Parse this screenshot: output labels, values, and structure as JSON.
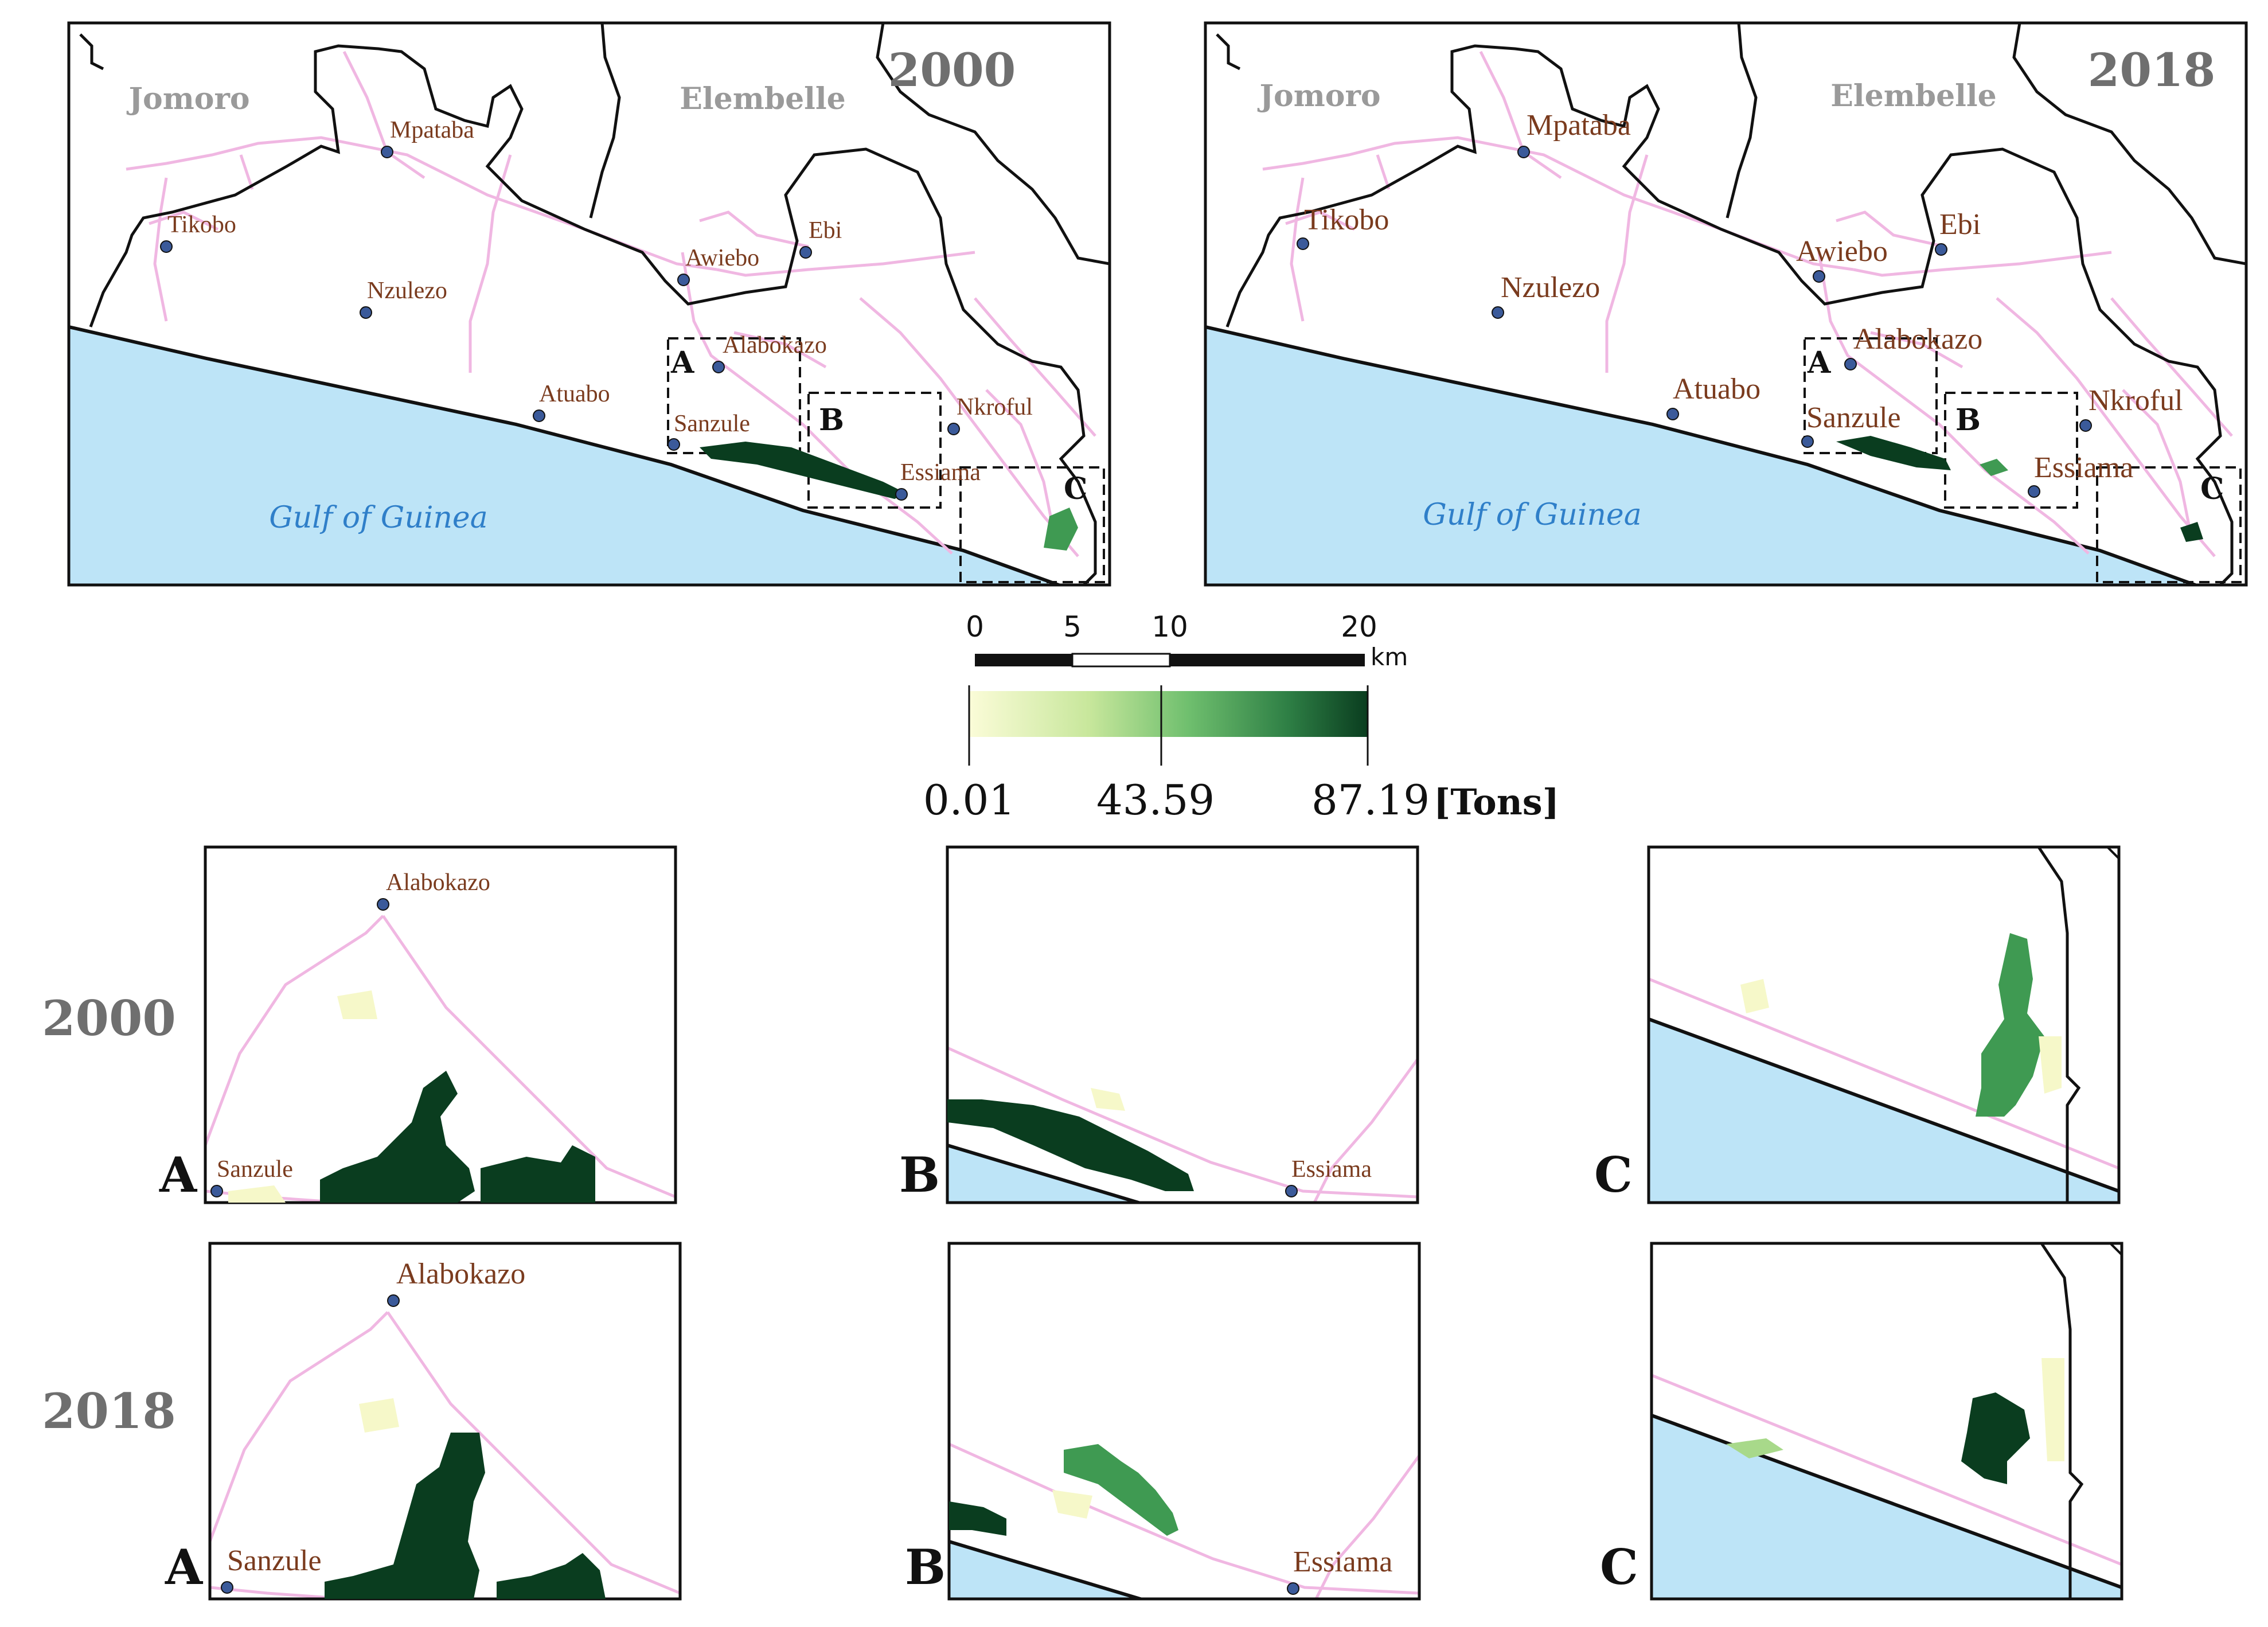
{
  "maps": {
    "left_year": "2000",
    "right_year": "2018",
    "districts": {
      "west": "Jomoro",
      "east": "Elembelle"
    },
    "water_body": "Gulf of Guinea",
    "places": {
      "mpataba": "Mpataba",
      "tikobo": "Tikobo",
      "nzulezo": "Nzulezo",
      "awiebo": "Awiebo",
      "ebi": "Ebi",
      "alabokazo": "Alabokazo",
      "atuabo": "Atuabo",
      "sanzule": "Sanzule",
      "nkroful": "Nkroful",
      "essiama": "Essiama"
    },
    "zoom_boxes": [
      "A",
      "B",
      "C"
    ]
  },
  "scale_bar": {
    "ticks": [
      "0",
      "5",
      "10",
      "20"
    ],
    "unit": "km"
  },
  "legend": {
    "min": "0.01",
    "mid": "43.59",
    "max": "87.19",
    "unit": "[Tons]",
    "colors": [
      "#fbfcd8",
      "#a8d98a",
      "#3f9a52",
      "#0a3d1f"
    ]
  },
  "insets": {
    "row_2000": "2000",
    "row_2018": "2018",
    "labels": {
      "a": "A",
      "b": "B",
      "c": "C"
    },
    "places": {
      "alabokazo": "Alabokazo",
      "sanzule": "Sanzule",
      "essiama": "Essiama"
    }
  },
  "colors": {
    "sea": "#bde4f7",
    "road": "#f0b7e2",
    "boundary": "#111111",
    "biomass_dark": "#0a3d1f",
    "biomass_mid": "#3f9a52",
    "biomass_light": "#f6f8c9"
  }
}
